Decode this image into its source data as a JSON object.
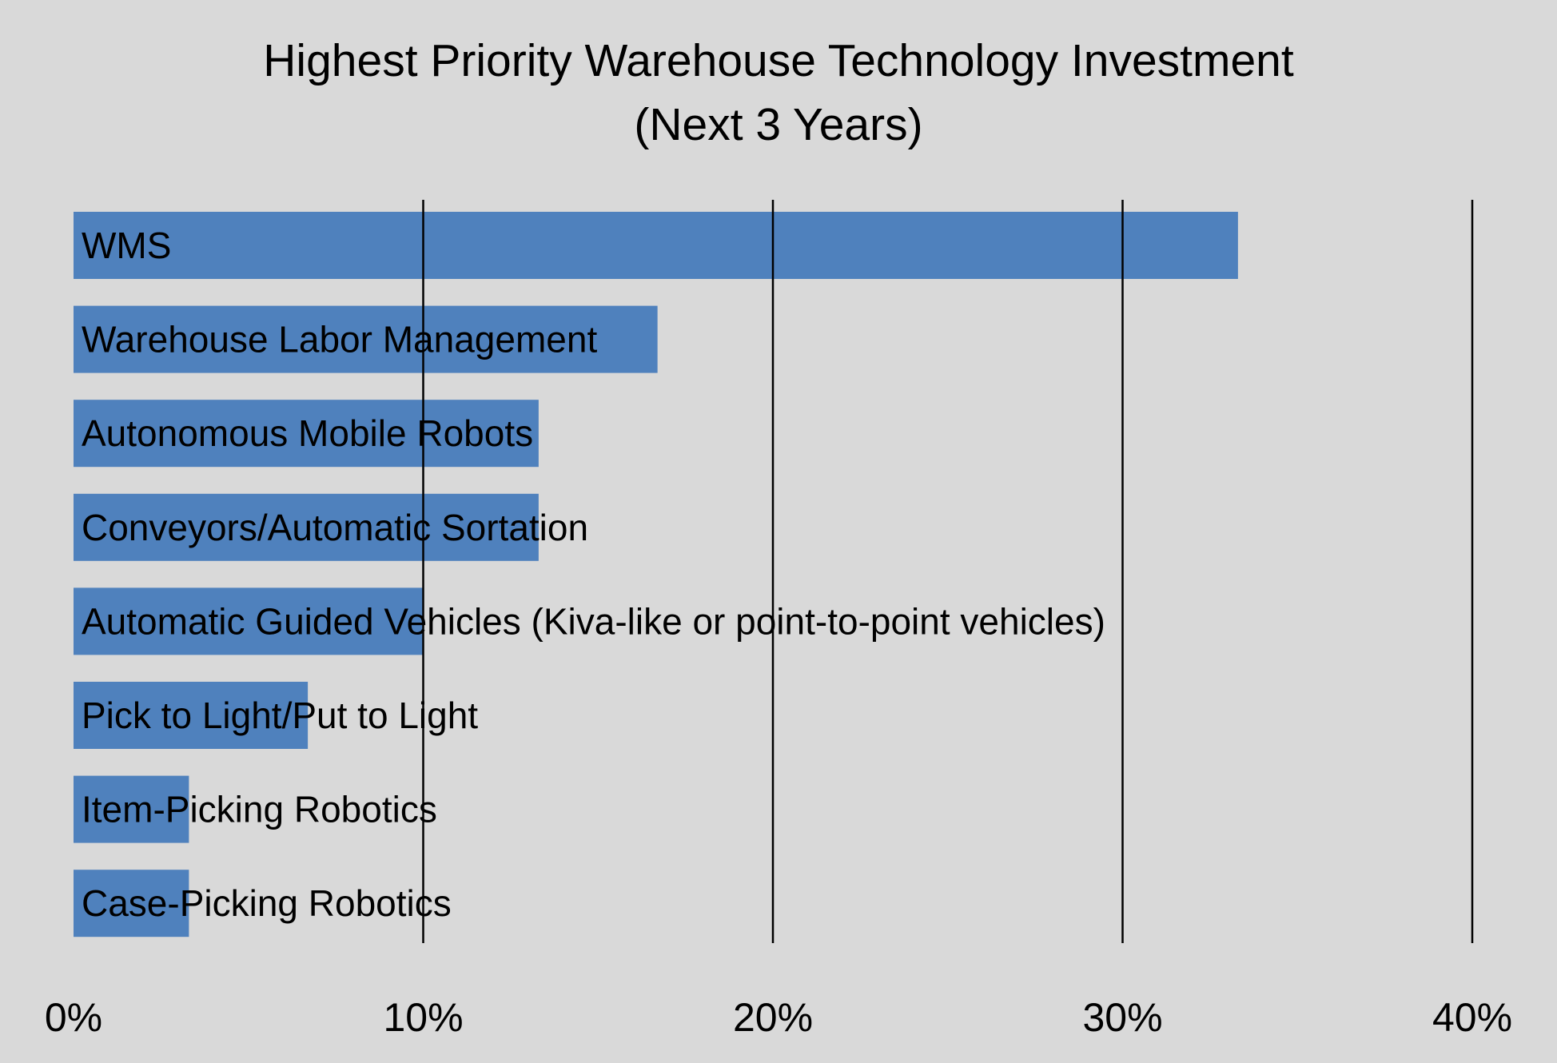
{
  "chart_data": {
    "type": "bar",
    "orientation": "horizontal",
    "title": "Highest Priority Warehouse Technology Investment",
    "subtitle": "(Next 3 Years)",
    "xlabel": "",
    "ylabel": "",
    "xlim": [
      0,
      40
    ],
    "x_ticks": [
      "0%",
      "10%",
      "20%",
      "30%",
      "40%"
    ],
    "x_tick_values": [
      0,
      10,
      20,
      30,
      40
    ],
    "grid": "vertical",
    "legend": "none",
    "categories": [
      "WMS",
      "Warehouse Labor Management",
      "Autonomous Mobile Robots",
      "Conveyors/Automatic Sortation",
      "Automatic Guided Vehicles (Kiva-like or point-to-point vehicles)",
      "Pick to Light/Put to Light",
      "Item-Picking Robotics",
      "Case-Picking Robotics"
    ],
    "values": [
      33.3,
      16.7,
      13.3,
      13.3,
      10.0,
      6.7,
      3.3,
      3.3
    ],
    "bar_color": "#4f81bd",
    "background_color": "#d9d9d9",
    "gridline_color": "#000000"
  }
}
